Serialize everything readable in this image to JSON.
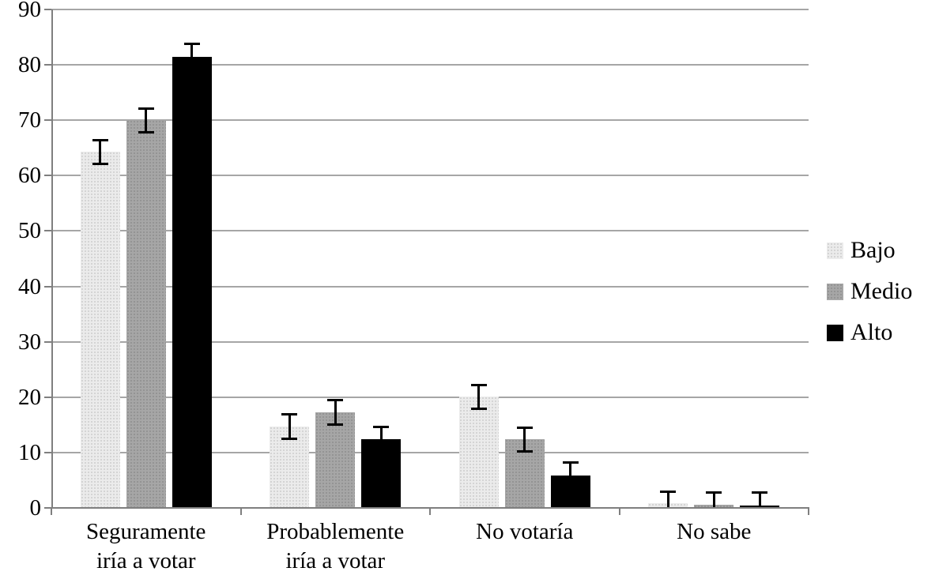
{
  "colors": {
    "background": "#ffffff",
    "gridline": "#a6a6a6",
    "axis": "#7f7f7f",
    "text": "#000000",
    "error_bar": "#000000"
  },
  "chart_data": {
    "type": "bar",
    "title": "",
    "xlabel": "",
    "ylabel": "",
    "categories": [
      "Seguramente iría a votar",
      "Probablemente iría a votar",
      "No votaría",
      "No sabe"
    ],
    "category_lines": [
      [
        "Seguramente",
        "iría a votar"
      ],
      [
        "Probablemente",
        "iría a votar"
      ],
      [
        "No votaría"
      ],
      [
        "No sabe"
      ]
    ],
    "series": [
      {
        "name": "Bajo",
        "values": [
          64.3,
          14.7,
          20.1,
          0.8
        ],
        "errors": [
          2.2,
          2.3,
          2.2,
          2.2
        ],
        "fill": "#ebebeb",
        "dot": "#cccccc",
        "pattern": "dots"
      },
      {
        "name": "Medio",
        "values": [
          70.0,
          17.3,
          12.4,
          0.6
        ],
        "errors": [
          2.2,
          2.3,
          2.2,
          2.3
        ],
        "fill": "#a6a6a6",
        "dot": "#8e8e8e",
        "pattern": "dots"
      },
      {
        "name": "Alto",
        "values": [
          81.5,
          12.4,
          5.9,
          0.4
        ],
        "errors": [
          2.4,
          2.3,
          2.4,
          2.4
        ],
        "fill": "#000000",
        "dot": "#000000",
        "pattern": "solid"
      }
    ],
    "ylim": [
      0,
      90
    ],
    "ytick_step": 10,
    "yticks": [
      0,
      10,
      20,
      30,
      40,
      50,
      60,
      70,
      80,
      90
    ],
    "grid": true,
    "error_bars": true,
    "legend_position": "right"
  }
}
